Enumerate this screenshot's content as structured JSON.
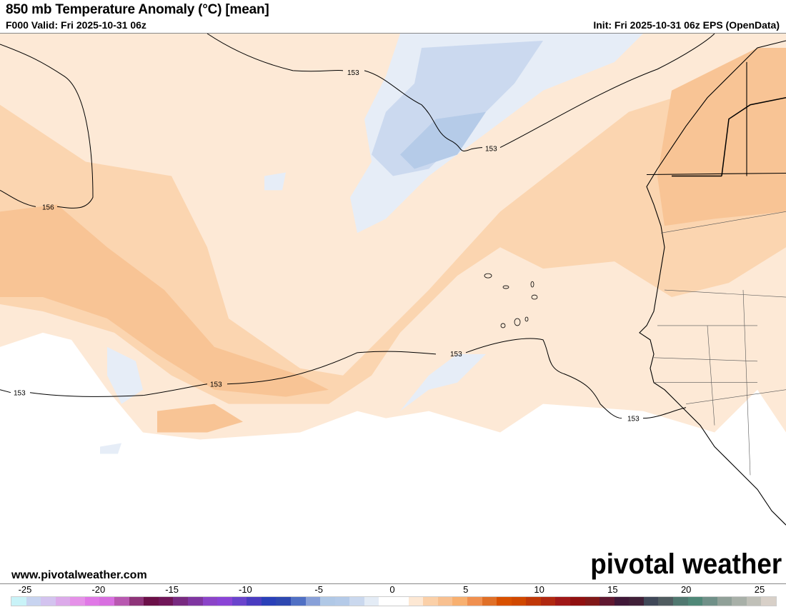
{
  "header": {
    "title": "850 mb Temperature Anomaly (°C) [mean]",
    "valid": "F000 Valid: Fri 2025-10-31 06z",
    "init": "Init: Fri 2025-10-31 06z EPS (OpenData)"
  },
  "footer": {
    "website": "www.pivotalweather.com",
    "logo_text": "pivotal weather"
  },
  "map": {
    "contour_labels": [
      "153",
      "153",
      "156",
      "153",
      "153",
      "153",
      "153"
    ],
    "palette": {
      "warm1": "#fde9d6",
      "warm2": "#fbd5b0",
      "warm3": "#f8c495",
      "cool1": "#e6edf7",
      "cool2": "#cbd9ef",
      "cool3": "#b5cbe8"
    }
  },
  "colorbar": {
    "labels": [
      "-25",
      "-20",
      "-15",
      "-10",
      "-5",
      "0",
      "5",
      "10",
      "15",
      "20",
      "25"
    ],
    "colors": [
      "#c9f3f8",
      "#c8d4f0",
      "#d3c3ef",
      "#dcaaea",
      "#e591e8",
      "#e078e6",
      "#d86fe0",
      "#b858b0",
      "#8e3479",
      "#6b1048",
      "#701658",
      "#782a80",
      "#7f36a0",
      "#8b44c8",
      "#8a44d6",
      "#6a44cc",
      "#4a3cc0",
      "#2a40b8",
      "#2e48b0",
      "#5070c4",
      "#88a0d8",
      "#b0c8e6",
      "#b4cae8",
      "#cad8ee",
      "#e4ecf6",
      "#ffffff",
      "#ffffff",
      "#fde8d4",
      "#fbd0a8",
      "#f8c090",
      "#f8b070",
      "#f09050",
      "#e07028",
      "#d85000",
      "#d04800",
      "#c03808",
      "#b02810",
      "#a01818",
      "#901010",
      "#801818",
      "#601830",
      "#401838",
      "#402038",
      "#404858",
      "#505c60",
      "#507870",
      "#508878",
      "#709088",
      "#90a098",
      "#a8b0a8",
      "#c0c0b8",
      "#d8d0c8"
    ]
  }
}
